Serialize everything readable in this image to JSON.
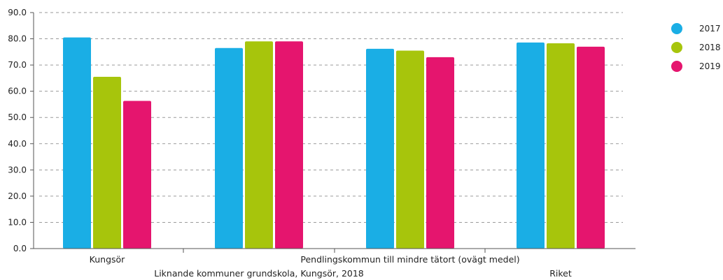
{
  "chart_data": {
    "type": "bar",
    "categories": [
      "Kungsör",
      "Liknande kommuner grundskola, Kungsör, 2018",
      "Pendlingskommun till mindre tätort (ovägt medel)",
      "Riket"
    ],
    "series": [
      {
        "name": "2017",
        "color": "#1aaee5",
        "values": [
          80.5,
          76.5,
          76.2,
          78.6
        ]
      },
      {
        "name": "2018",
        "color": "#a7c50c",
        "values": [
          65.5,
          79.0,
          75.5,
          78.3
        ]
      },
      {
        "name": "2019",
        "color": "#e5156e",
        "values": [
          56.3,
          79.0,
          73.0,
          77.0
        ]
      }
    ],
    "ylim": [
      0,
      90
    ],
    "yticks": [
      "0.0",
      "10.0",
      "20.0",
      "30.0",
      "40.0",
      "50.0",
      "60.0",
      "70.0",
      "80.0",
      "90.0"
    ],
    "grid": true,
    "legend": "right",
    "title": "",
    "xlabel": "",
    "ylabel": ""
  }
}
